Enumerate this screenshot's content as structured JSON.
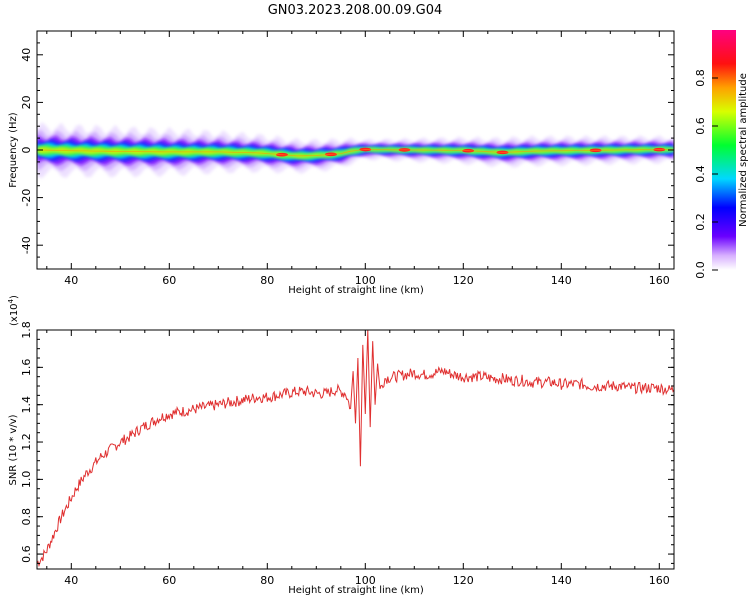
{
  "title": "GN03.2023.208.00.09.G04",
  "colors": {
    "snr_line": "#e03030",
    "background": "#ffffff",
    "axis": "#000000"
  },
  "chart_data": [
    {
      "type": "heatmap",
      "title": "GN03.2023.208.00.09.G04",
      "xlabel": "Height of straight line (km)",
      "ylabel": "Frequency (Hz)",
      "xlim": [
        33,
        163
      ],
      "ylim": [
        -50,
        50
      ],
      "xticks": [
        40,
        60,
        80,
        100,
        120,
        140,
        160
      ],
      "yticks": [
        -40,
        -20,
        0,
        20,
        40
      ],
      "colorbar": {
        "label": "Normalized spectral amplitude",
        "range": [
          0.0,
          1.0
        ],
        "ticks": [
          "0.0",
          "0.2",
          "0.4",
          "0.6",
          "0.8"
        ],
        "colormap": "rainbow (white-violet-blue-cyan-green-yellow-red-magenta)"
      },
      "centerline": [
        {
          "x": 33,
          "y": 0.0
        },
        {
          "x": 40,
          "y": -0.3
        },
        {
          "x": 50,
          "y": -0.6
        },
        {
          "x": 60,
          "y": -0.8
        },
        {
          "x": 70,
          "y": -0.8
        },
        {
          "x": 78,
          "y": -1.2
        },
        {
          "x": 82,
          "y": -1.8
        },
        {
          "x": 86,
          "y": -2.5
        },
        {
          "x": 90,
          "y": -2.3
        },
        {
          "x": 95,
          "y": -1.5
        },
        {
          "x": 97,
          "y": -0.5
        },
        {
          "x": 100,
          "y": 0.2
        },
        {
          "x": 110,
          "y": 0.0
        },
        {
          "x": 120,
          "y": -0.2
        },
        {
          "x": 128,
          "y": -1.0
        },
        {
          "x": 135,
          "y": -0.4
        },
        {
          "x": 145,
          "y": -0.2
        },
        {
          "x": 155,
          "y": 0.1
        },
        {
          "x": 163,
          "y": 0.2
        }
      ],
      "band_halfwidth_hz": [
        {
          "x": 33,
          "w": 3.2
        },
        {
          "x": 60,
          "w": 2.8
        },
        {
          "x": 80,
          "w": 2.2
        },
        {
          "x": 95,
          "w": 1.8
        },
        {
          "x": 100,
          "w": 1.2
        },
        {
          "x": 130,
          "w": 1.8
        },
        {
          "x": 163,
          "w": 1.6
        }
      ],
      "red_hotspots_x": [
        83,
        93,
        100,
        108,
        121,
        128,
        147,
        160
      ]
    },
    {
      "type": "line",
      "xlabel": "Height of straight line (km)",
      "ylabel": "SNR (10 * v/v)",
      "y_multiplier": "(x10",
      "y_multiplier_exp": "4",
      "y_multiplier_close": ")",
      "xlim": [
        33,
        163
      ],
      "ylim": [
        0.52,
        1.8
      ],
      "xticks": [
        40,
        60,
        80,
        100,
        120,
        140,
        160
      ],
      "yticks": [
        0.6,
        0.8,
        1.0,
        1.2,
        1.4,
        1.6,
        1.8
      ],
      "series": [
        {
          "x": [
            33,
            34,
            35,
            36,
            37,
            38,
            39,
            40,
            41,
            42,
            43,
            44,
            45,
            46,
            47,
            48,
            49,
            50,
            52,
            54,
            56,
            58,
            60,
            62,
            64,
            66,
            68,
            70,
            72,
            74,
            76,
            78,
            80,
            82,
            84,
            86,
            88,
            90,
            92,
            94,
            95,
            96,
            97,
            97.5,
            98,
            98.5,
            99,
            99.5,
            100,
            100.5,
            101,
            101.5,
            102,
            102.5,
            103,
            104,
            106,
            108,
            110,
            112,
            114,
            116,
            118,
            120,
            122,
            124,
            126,
            128,
            130,
            132,
            134,
            136,
            138,
            140,
            142,
            144,
            146,
            148,
            150,
            152,
            154,
            156,
            158,
            160,
            162,
            163
          ],
          "y": [
            0.55,
            0.58,
            0.62,
            0.68,
            0.74,
            0.8,
            0.85,
            0.9,
            0.95,
            0.99,
            1.03,
            1.06,
            1.09,
            1.12,
            1.14,
            1.16,
            1.18,
            1.2,
            1.23,
            1.27,
            1.3,
            1.33,
            1.35,
            1.36,
            1.37,
            1.38,
            1.39,
            1.4,
            1.41,
            1.42,
            1.43,
            1.44,
            1.44,
            1.45,
            1.46,
            1.47,
            1.47,
            1.46,
            1.46,
            1.48,
            1.47,
            1.46,
            1.38,
            1.58,
            1.3,
            1.65,
            1.07,
            1.72,
            1.35,
            1.8,
            1.28,
            1.74,
            1.4,
            1.62,
            1.48,
            1.54,
            1.55,
            1.56,
            1.57,
            1.56,
            1.57,
            1.58,
            1.56,
            1.55,
            1.55,
            1.55,
            1.54,
            1.54,
            1.53,
            1.53,
            1.52,
            1.52,
            1.52,
            1.51,
            1.51,
            1.51,
            1.5,
            1.5,
            1.5,
            1.5,
            1.49,
            1.49,
            1.49,
            1.49,
            1.48,
            1.48
          ]
        }
      ]
    }
  ]
}
